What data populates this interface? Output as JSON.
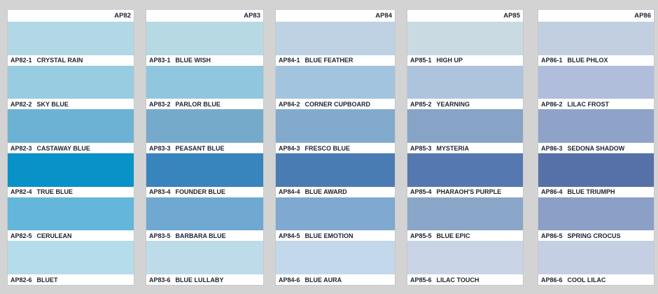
{
  "page": {
    "background": "#d3d3d3",
    "label_background": "#ffffff",
    "text_color": "#1c2230"
  },
  "cards": [
    {
      "code": "AP82",
      "swatches": [
        {
          "code": "AP82-1",
          "name": "CRYSTAL RAIN",
          "color": "#b2d8e5"
        },
        {
          "code": "AP82-2",
          "name": "SKY BLUE",
          "color": "#97cce1"
        },
        {
          "code": "AP82-3",
          "name": "CASTAWAY BLUE",
          "color": "#6cb2d4"
        },
        {
          "code": "AP82-4",
          "name": "TRUE BLUE",
          "color": "#0892c7"
        },
        {
          "code": "AP82-5",
          "name": "CERULEAN",
          "color": "#64b6da"
        },
        {
          "code": "AP82-6",
          "name": "BLUET",
          "color": "#b5dcea"
        }
      ]
    },
    {
      "code": "AP83",
      "swatches": [
        {
          "code": "AP83-1",
          "name": "BLUE WISH",
          "color": "#b6d9e4"
        },
        {
          "code": "AP83-2",
          "name": "PARLOR BLUE",
          "color": "#90c6de"
        },
        {
          "code": "AP83-3",
          "name": "PEASANT BLUE",
          "color": "#76aacb"
        },
        {
          "code": "AP83-4",
          "name": "FOUNDER BLUE",
          "color": "#3884bd"
        },
        {
          "code": "AP83-5",
          "name": "BARBARA BLUE",
          "color": "#6fa9d2"
        },
        {
          "code": "AP83-6",
          "name": "BLUE LULLABY",
          "color": "#bedbe9"
        }
      ]
    },
    {
      "code": "AP84",
      "swatches": [
        {
          "code": "AP84-1",
          "name": "BLUE FEATHER",
          "color": "#bed2e3"
        },
        {
          "code": "AP84-2",
          "name": "CORNER CUPBOARD",
          "color": "#a2c4de"
        },
        {
          "code": "AP84-3",
          "name": "FRESCO BLUE",
          "color": "#82aacd"
        },
        {
          "code": "AP84-4",
          "name": "BLUE AWARD",
          "color": "#4a7cb4"
        },
        {
          "code": "AP84-5",
          "name": "BLUE EMOTION",
          "color": "#7fa9d0"
        },
        {
          "code": "AP84-6",
          "name": "BLUE AURA",
          "color": "#c3d8ea"
        }
      ]
    },
    {
      "code": "AP85",
      "swatches": [
        {
          "code": "AP85-1",
          "name": "HIGH UP",
          "color": "#cadae3"
        },
        {
          "code": "AP85-2",
          "name": "YEARNING",
          "color": "#adc4dc"
        },
        {
          "code": "AP85-3",
          "name": "MYSTERIA",
          "color": "#87a4c6"
        },
        {
          "code": "AP85-4",
          "name": "PHARAOH'S PURPLE",
          "color": "#5678b0"
        },
        {
          "code": "AP85-5",
          "name": "BLUE EPIC",
          "color": "#8aa7c9"
        },
        {
          "code": "AP85-6",
          "name": "LILAC TOUCH",
          "color": "#c9d4e6"
        }
      ]
    },
    {
      "code": "AP86",
      "swatches": [
        {
          "code": "AP86-1",
          "name": "BLUE PHLOX",
          "color": "#c2cfe0"
        },
        {
          "code": "AP86-2",
          "name": "LILAC FROST",
          "color": "#b0bedc"
        },
        {
          "code": "AP86-3",
          "name": "SEDONA SHADOW",
          "color": "#8fa3c9"
        },
        {
          "code": "AP86-4",
          "name": "BLUE TRIUMPH",
          "color": "#5571a8"
        },
        {
          "code": "AP86-5",
          "name": "SPRING CROCUS",
          "color": "#8c9fc7"
        },
        {
          "code": "AP86-6",
          "name": "COOL LILAC",
          "color": "#c5cfe4"
        }
      ]
    }
  ]
}
